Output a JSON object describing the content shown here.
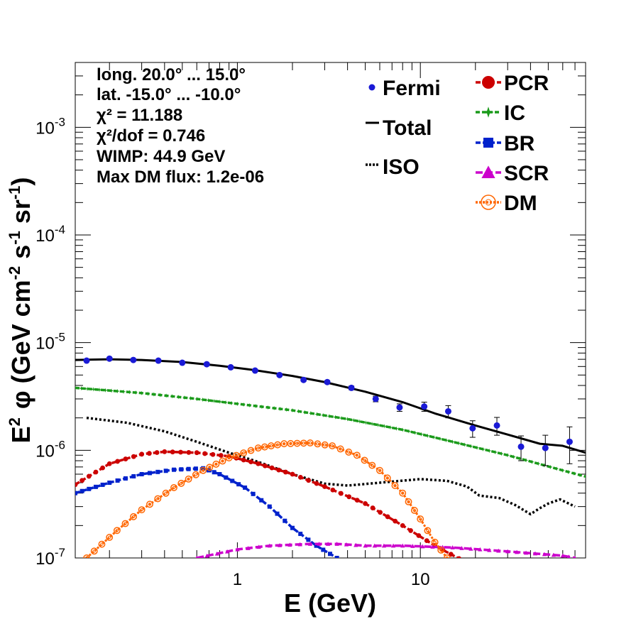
{
  "chart_data": {
    "type": "line",
    "xlabel": "E (GeV)",
    "ylabel": "E² φ (GeV cm⁻² s⁻¹ sr⁻¹)",
    "ylabel_parts": {
      "pre": "E",
      "exp1": "2",
      "phi": "φ (GeV cm",
      "exp2": "-2",
      "s": " s",
      "exp3": "-1",
      "sr": " sr",
      "exp4": "-1",
      "close": ")"
    },
    "x_scale": "log",
    "y_scale": "log",
    "xlim": [
      0.13,
      80
    ],
    "ylim": [
      1e-07,
      0.004
    ],
    "x_ticks": [
      "1",
      "10"
    ],
    "y_ticks": [
      {
        "base": "10",
        "exp": "-7"
      },
      {
        "base": "10",
        "exp": "-6"
      },
      {
        "base": "10",
        "exp": "-5"
      },
      {
        "base": "10",
        "exp": "-4"
      },
      {
        "base": "10",
        "exp": "-3"
      }
    ],
    "info_lines": [
      "long. 20.0° ... 15.0°",
      "lat. -15.0° ... -10.0°",
      "χ² = 11.188",
      "χ²/dof = 0.746",
      "WIMP: 44.9 GeV",
      "Max DM flux: 1.2e-06"
    ],
    "legend": [
      {
        "label": "Fermi",
        "color": "#1a1ad6",
        "style": "dot"
      },
      {
        "label": "Total",
        "color": "#000000",
        "style": "solid"
      },
      {
        "label": "ISO",
        "color": "#000000",
        "style": "dotted"
      },
      {
        "label": "PCR",
        "color": "#cc0000",
        "style": "circle"
      },
      {
        "label": "IC",
        "color": "#1a9a1a",
        "style": "star"
      },
      {
        "label": "BR",
        "color": "#0022cc",
        "style": "square"
      },
      {
        "label": "SCR",
        "color": "#cc00cc",
        "style": "triangle"
      },
      {
        "label": "DM",
        "color": "#ff6600",
        "style": "open-circle"
      }
    ],
    "series": [
      {
        "name": "Fermi",
        "color": "#1a1ad6",
        "x": [
          0.15,
          0.2,
          0.27,
          0.37,
          0.5,
          0.68,
          0.92,
          1.25,
          1.7,
          2.3,
          3.1,
          4.2,
          5.7,
          7.7,
          10.5,
          14.2,
          19.3,
          26.2,
          35.5,
          48.2,
          65.4
        ],
        "y": [
          6.8e-06,
          7.1e-06,
          6.9e-06,
          6.8e-06,
          6.5e-06,
          6.3e-06,
          5.9e-06,
          5.5e-06,
          5e-06,
          4.5e-06,
          4.3e-06,
          3.8e-06,
          3e-06,
          2.5e-06,
          2.55e-06,
          2.3e-06,
          1.6e-06,
          1.7e-06,
          1.08e-06,
          1.05e-06,
          1.2e-06
        ],
        "err": [
          1e-07,
          1e-07,
          1e-07,
          1e-07,
          1e-07,
          1e-07,
          1e-07,
          1e-07,
          1.2e-07,
          1.2e-07,
          1.3e-07,
          1.5e-07,
          1.8e-07,
          2e-07,
          2.5e-07,
          3e-07,
          2.8e-07,
          3.2e-07,
          2.8e-07,
          3.3e-07,
          4.5e-07
        ]
      },
      {
        "name": "Total",
        "color": "#000000",
        "x": [
          0.13,
          0.2,
          0.3,
          0.5,
          0.8,
          1.2,
          2,
          3,
          5,
          8,
          12,
          20,
          30,
          45,
          60,
          80
        ],
        "y": [
          6.9e-06,
          7e-06,
          6.9e-06,
          6.6e-06,
          6.1e-06,
          5.6e-06,
          4.9e-06,
          4.3e-06,
          3.5e-06,
          2.8e-06,
          2.2e-06,
          1.7e-06,
          1.4e-06,
          1.15e-06,
          1.1e-06,
          9.5e-07
        ]
      },
      {
        "name": "IC",
        "color": "#1a9a1a",
        "x": [
          0.13,
          0.3,
          0.6,
          1,
          2,
          4,
          8,
          15,
          30,
          60,
          80
        ],
        "y": [
          3.8e-06,
          3.4e-06,
          3e-06,
          2.7e-06,
          2.35e-06,
          1.95e-06,
          1.55e-06,
          1.2e-06,
          9e-07,
          6.5e-07,
          5.7e-07
        ]
      },
      {
        "name": "ISO",
        "color": "#000000",
        "x": [
          0.15,
          0.25,
          0.4,
          0.6,
          0.9,
          1.3,
          2,
          3,
          4,
          6,
          10,
          14,
          18,
          21,
          27,
          33,
          40,
          45,
          50,
          58,
          70
        ],
        "y": [
          2e-06,
          1.8e-06,
          1.5e-06,
          1.2e-06,
          9.5e-07,
          7.8e-07,
          6e-07,
          4.9e-07,
          4.7e-07,
          5e-07,
          5.4e-07,
          5.2e-07,
          4.6e-07,
          3.8e-07,
          3.6e-07,
          3.1e-07,
          2.55e-07,
          2.9e-07,
          3.2e-07,
          3.5e-07,
          3e-07
        ]
      },
      {
        "name": "PCR",
        "color": "#cc0000",
        "x": [
          0.13,
          0.2,
          0.3,
          0.4,
          0.6,
          0.9,
          1.3,
          2,
          3,
          5,
          8,
          12,
          18
        ],
        "y": [
          4.8e-07,
          7.5e-07,
          9.2e-07,
          9.7e-07,
          9.5e-07,
          8.8e-07,
          7.5e-07,
          6e-07,
          4.6e-07,
          3.2e-07,
          2e-07,
          1.3e-07,
          9e-08
        ]
      },
      {
        "name": "BR",
        "color": "#0022cc",
        "x": [
          0.13,
          0.2,
          0.3,
          0.45,
          0.65,
          0.8,
          1.1,
          1.5,
          2,
          2.7,
          3.5,
          4
        ],
        "y": [
          4e-07,
          5e-07,
          6e-07,
          6.6e-07,
          6.8e-07,
          6e-07,
          4.5e-07,
          3e-07,
          1.9e-07,
          1.3e-07,
          1e-07,
          9e-08
        ]
      },
      {
        "name": "SCR",
        "color": "#cc00cc",
        "x": [
          0.6,
          1,
          1.5,
          2.5,
          3.5,
          5,
          8,
          15,
          30,
          60,
          70
        ],
        "y": [
          1e-07,
          1.2e-07,
          1.3e-07,
          1.35e-07,
          1.35e-07,
          1.3e-07,
          1.3e-07,
          1.25e-07,
          1.15e-07,
          1.05e-07,
          1e-07
        ]
      },
      {
        "name": "DM",
        "color": "#ff6600",
        "x": [
          0.15,
          0.22,
          0.3,
          0.45,
          0.65,
          0.9,
          1.3,
          1.8,
          2.5,
          3.3,
          4.5,
          6,
          8,
          10,
          12,
          14,
          16
        ],
        "y": [
          1e-07,
          1.8e-07,
          2.8e-07,
          4.5e-07,
          6.5e-07,
          8.5e-07,
          1.05e-06,
          1.15e-06,
          1.17e-06,
          1.1e-06,
          9e-07,
          6.5e-07,
          4e-07,
          2.3e-07,
          1.4e-07,
          1e-07,
          8.5e-08
        ]
      }
    ]
  }
}
